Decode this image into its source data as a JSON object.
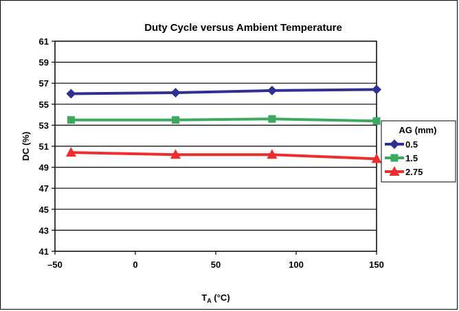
{
  "chart_data": {
    "type": "line",
    "title": "Duty Cycle versus Ambient Temperature",
    "xlabel_main": "T",
    "xlabel_sub": "A",
    "xlabel_unit": " (°C)",
    "ylabel": "DC (%)",
    "xlim": [
      -50,
      150
    ],
    "ylim": [
      41,
      61
    ],
    "xticks": [
      -50,
      0,
      50,
      100,
      150
    ],
    "xtick_labels": [
      "–50",
      "0",
      "50",
      "100",
      "150"
    ],
    "yticks": [
      41,
      43,
      45,
      47,
      49,
      51,
      53,
      55,
      57,
      59,
      61
    ],
    "grid": true,
    "legend_title": "AG (mm)",
    "legend_position": "right",
    "series": [
      {
        "name": "0.5",
        "marker": "diamond",
        "color": "#2E3192",
        "x": [
          -40,
          25,
          85,
          150
        ],
        "y": [
          56.0,
          56.1,
          56.3,
          56.4
        ]
      },
      {
        "name": "1.5",
        "marker": "square",
        "color": "#3BAA5F",
        "x": [
          -40,
          25,
          85,
          150
        ],
        "y": [
          53.5,
          53.5,
          53.6,
          53.4
        ]
      },
      {
        "name": "2.75",
        "marker": "triangle",
        "color": "#EE2D2F",
        "x": [
          -40,
          25,
          85,
          150
        ],
        "y": [
          50.4,
          50.2,
          50.2,
          49.8
        ]
      }
    ]
  }
}
